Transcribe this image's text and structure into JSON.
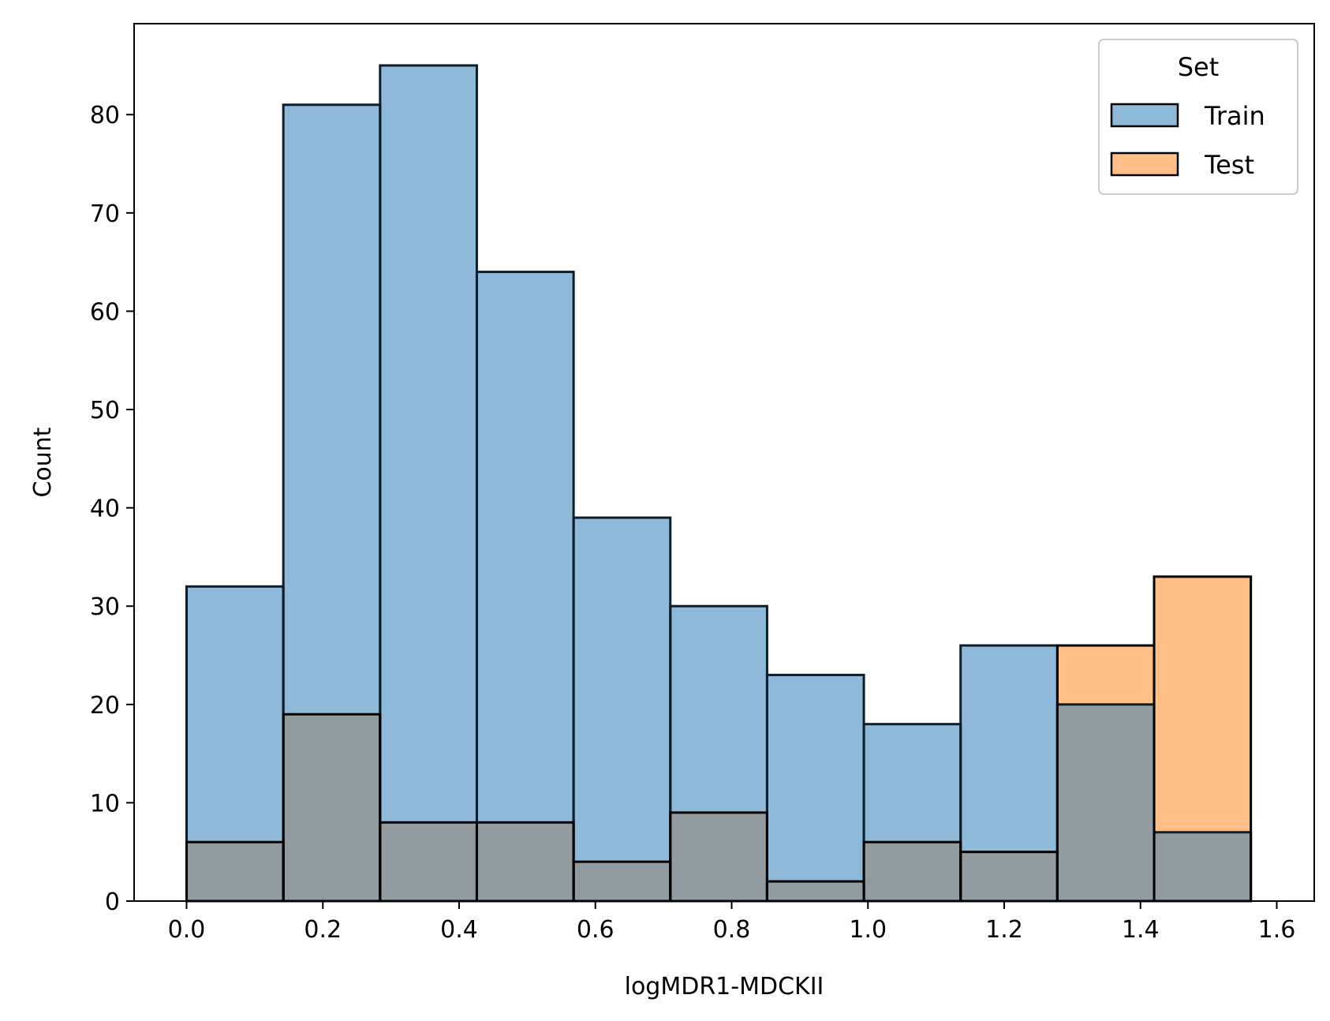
{
  "chart_data": {
    "type": "bar",
    "subtype": "overlaid-histogram",
    "title": "",
    "xlabel": "logMDR1-MDCKII",
    "ylabel": "Count",
    "xlim": [
      -0.077,
      1.655
    ],
    "ylim": [
      0,
      89.25
    ],
    "xticks": [
      0.0,
      0.2,
      0.4,
      0.6,
      0.8,
      1.0,
      1.2,
      1.4,
      1.6
    ],
    "xtick_labels": [
      "0.0",
      "0.2",
      "0.4",
      "0.6",
      "0.8",
      "1.0",
      "1.2",
      "1.4",
      "1.6"
    ],
    "yticks": [
      0,
      10,
      20,
      30,
      40,
      50,
      60,
      70,
      80
    ],
    "ytick_labels": [
      "0",
      "10",
      "20",
      "30",
      "40",
      "50",
      "60",
      "70",
      "80"
    ],
    "bin_edges": [
      0.0,
      0.142,
      0.284,
      0.426,
      0.568,
      0.71,
      0.852,
      0.994,
      1.136,
      1.278,
      1.42,
      1.562
    ],
    "grid": false,
    "legend": {
      "title": "Set",
      "placement": "top-right"
    },
    "series": [
      {
        "name": "Train",
        "color": "#8fb9d9",
        "values": [
          32,
          81,
          85,
          64,
          39,
          30,
          23,
          18,
          26,
          20,
          7
        ]
      },
      {
        "name": "Test",
        "color": "#ffbf87",
        "values": [
          6,
          19,
          8,
          8,
          4,
          9,
          2,
          6,
          5,
          26,
          33
        ]
      }
    ],
    "overlap_color": "#929b9f"
  }
}
